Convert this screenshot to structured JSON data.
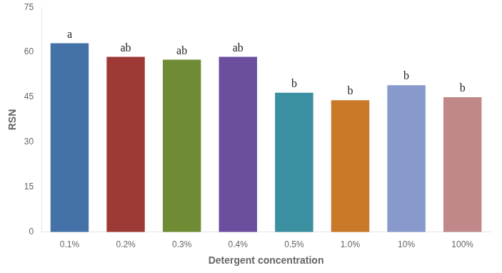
{
  "chart_data": {
    "type": "bar",
    "categories": [
      "0.1%",
      "0.2%",
      "0.3%",
      "0.4%",
      "0.5%",
      "1.0%",
      "10%",
      "100%"
    ],
    "values": [
      63,
      58.5,
      57.5,
      58.5,
      46.5,
      44,
      49,
      45
    ],
    "colors": [
      "#4472a8",
      "#9e3a35",
      "#6f8c35",
      "#6b4f9e",
      "#3a8fa0",
      "#c87828",
      "#8899cc",
      "#c08888"
    ],
    "annotations": [
      "a",
      "ab",
      "ab",
      "ab",
      "b",
      "b",
      "b",
      "b"
    ],
    "xlabel": "Detergent concentration",
    "ylabel": "RSN",
    "ylim": [
      0,
      75
    ],
    "yticks": [
      0,
      15,
      30,
      45,
      60,
      75
    ],
    "grid": false,
    "legend": false
  }
}
